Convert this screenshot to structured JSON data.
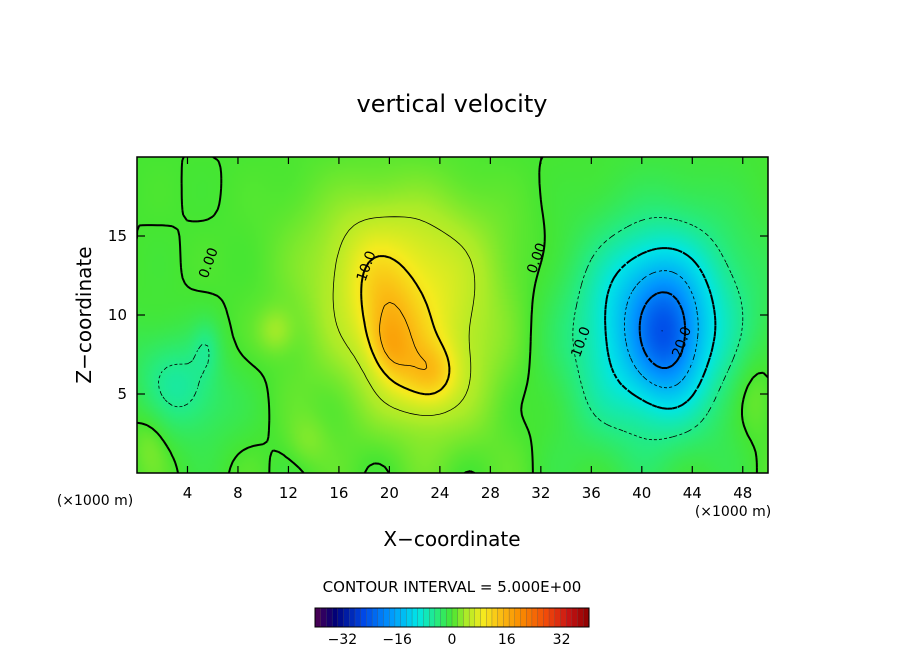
{
  "chart_data": {
    "type": "heatmap",
    "title": "vertical velocity",
    "xlabel": "X−coordinate",
    "ylabel": "Z−coordinate",
    "x_unit": "(×1000 m)",
    "x_unit_right": "(×1000 m)",
    "xlim": [
      0,
      50
    ],
    "ylim": [
      0,
      20
    ],
    "xticks": [
      4,
      8,
      12,
      16,
      20,
      24,
      28,
      32,
      36,
      40,
      44,
      48
    ],
    "yticks": [
      5,
      10,
      15
    ],
    "contour_interval_text": "CONTOUR INTERVAL = 5.000E+00",
    "contour_labels": [
      {
        "text": "0.00",
        "x": 6.0,
        "y": 13.2
      },
      {
        "text": "10.0",
        "x": 18.5,
        "y": 13.0
      },
      {
        "text": "0.00",
        "x": 32.0,
        "y": 13.5
      },
      {
        "text": "10.0",
        "x": 35.5,
        "y": 8.2
      },
      {
        "text": "20.0",
        "x": 43.5,
        "y": 8.2
      }
    ],
    "colorbar": {
      "range": [
        -40,
        40
      ],
      "ticks": [
        -32,
        -16,
        0,
        16,
        32
      ],
      "tick_labels": [
        "−32",
        "−16",
        "0",
        "16",
        "32"
      ]
    },
    "field_features": [
      {
        "kind": "updraft",
        "x": 21.5,
        "z": 9.5,
        "peak": 16
      },
      {
        "kind": "updraft",
        "x": 24.0,
        "z": 6.0,
        "peak": 12
      },
      {
        "kind": "downdraft",
        "x": 41.5,
        "z": 9.0,
        "peak": -24
      },
      {
        "kind": "downdraft",
        "x": 3.5,
        "z": 5.5,
        "peak": -7
      }
    ],
    "grid": false
  }
}
